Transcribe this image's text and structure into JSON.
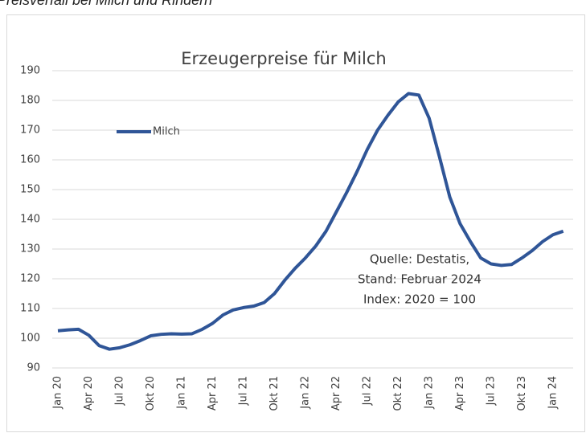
{
  "heading": "Preisverfall bei Milch und Rindern",
  "chart_data": {
    "type": "line",
    "title": "Erzeugerpreise für Milch",
    "categories": [
      "Jan 20",
      null,
      null,
      "Apr 20",
      null,
      null,
      "Jul 20",
      null,
      null,
      "Okt 20",
      null,
      null,
      "Jan 21",
      null,
      null,
      "Apr 21",
      null,
      null,
      "Jul 21",
      null,
      null,
      "Okt 21",
      null,
      null,
      "Jan 22",
      null,
      null,
      "Apr 22",
      null,
      null,
      "Jul 22",
      null,
      null,
      "Okt 22",
      null,
      null,
      "Jan 23",
      null,
      null,
      "Apr 23",
      null,
      null,
      "Jul 23",
      null,
      null,
      "Okt 23",
      null,
      null,
      "Jan 24",
      null
    ],
    "series": [
      {
        "name": "Milch",
        "color": "#2f5597",
        "values": [
          102.5,
          102.8,
          103,
          101,
          97.5,
          96.3,
          96.8,
          97.8,
          99.2,
          100.8,
          101.3,
          101.5,
          101.4,
          101.5,
          103,
          105,
          107.8,
          109.5,
          110.3,
          110.8,
          112,
          115,
          119.5,
          123.5,
          127,
          131,
          136,
          142.5,
          149,
          156,
          163.5,
          170,
          175,
          179.5,
          182.3,
          181.8,
          174,
          161,
          147.5,
          138.5,
          132.5,
          127,
          125,
          124.5,
          124.8,
          127,
          129.5,
          132.5,
          134.8,
          136
        ]
      }
    ],
    "ylim": [
      90,
      190
    ],
    "yticks": [
      90,
      100,
      110,
      120,
      130,
      140,
      150,
      160,
      170,
      180,
      190
    ],
    "grid": true,
    "legend": "upper left",
    "annotations": [
      "Quelle: Destatis,",
      "Stand: Februar 2024",
      "Index: 2020 = 100"
    ]
  }
}
